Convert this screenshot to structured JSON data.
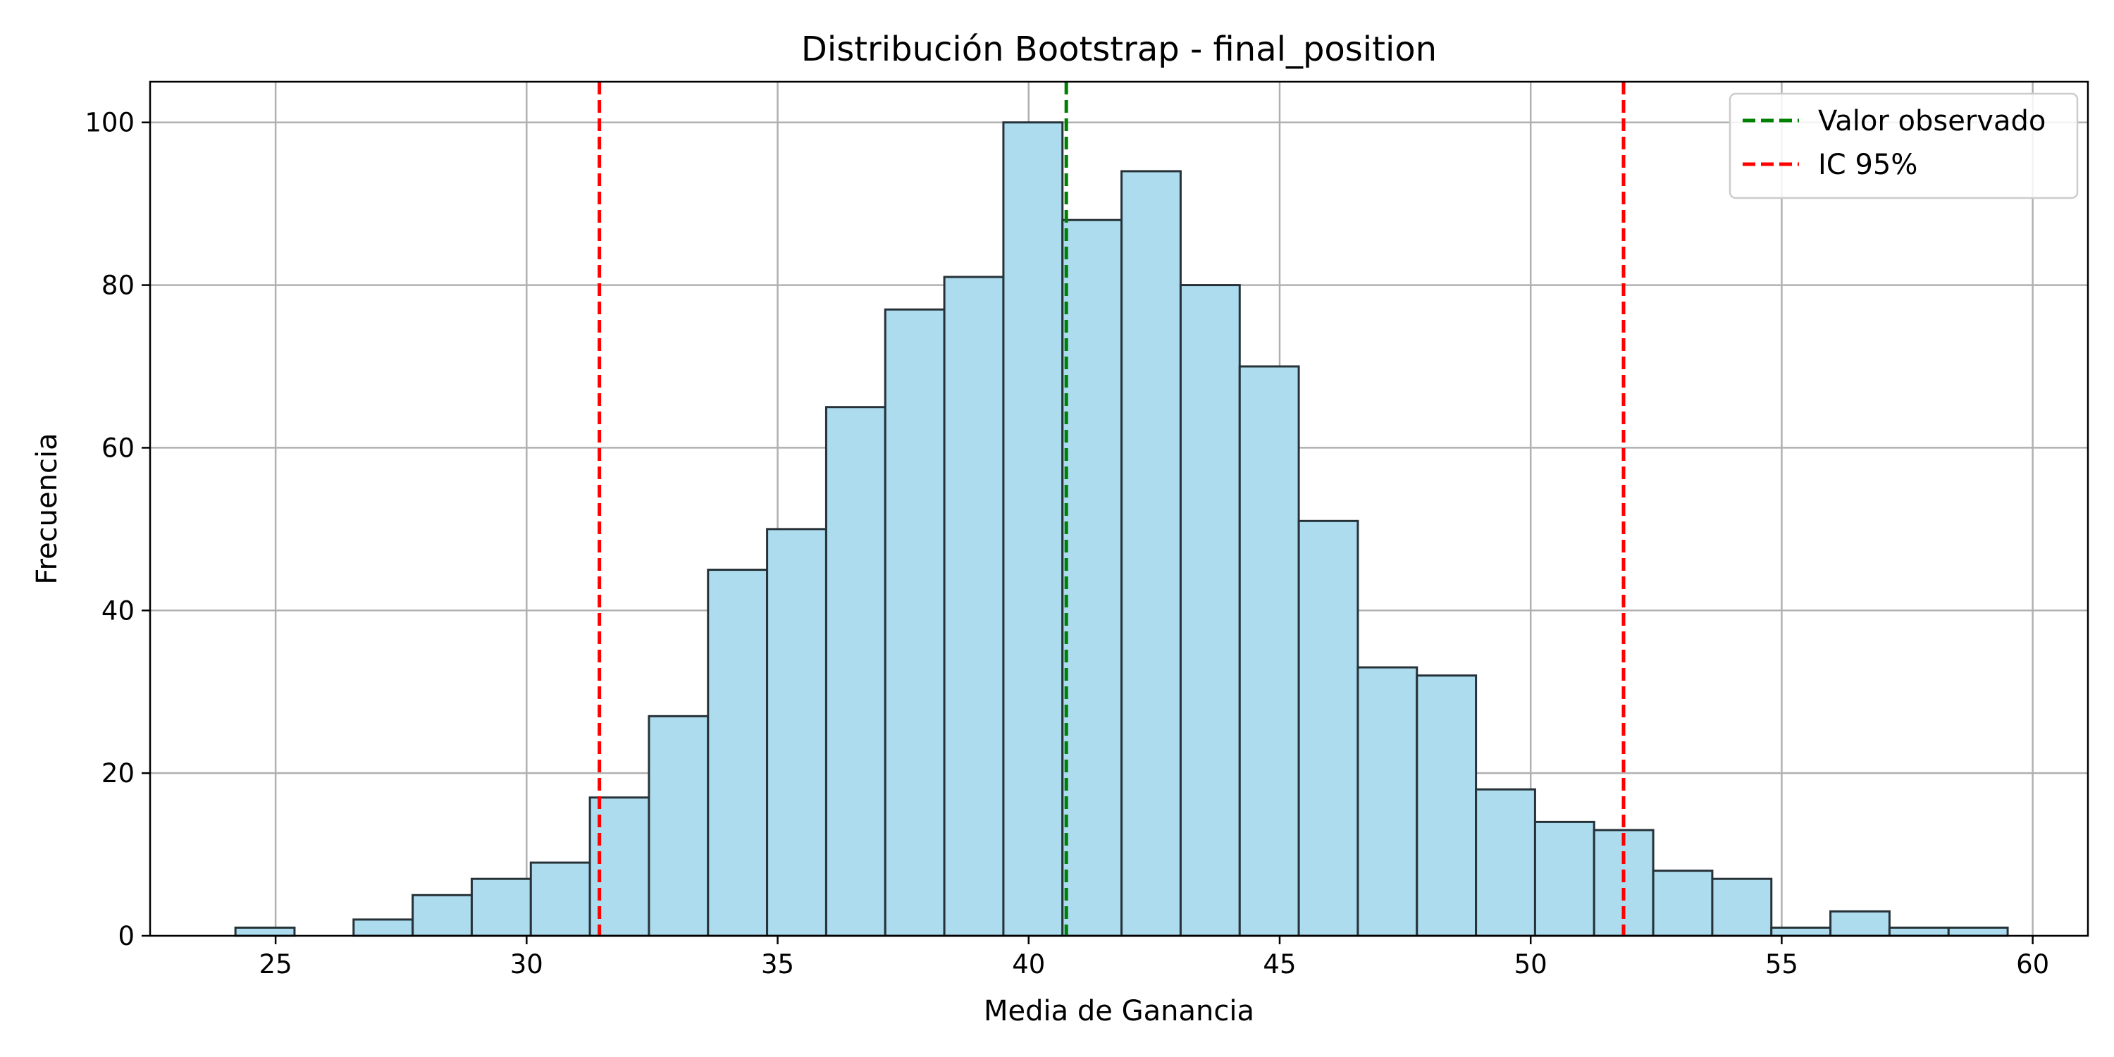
{
  "chart_data": {
    "type": "bar",
    "subtype": "histogram",
    "title": "Distribución Bootstrap - final_position",
    "xlabel": "Media de Ganancia",
    "ylabel": "Frecuencia",
    "xlim": [
      22.5,
      61.1
    ],
    "ylim": [
      0,
      105
    ],
    "xticks": [
      25,
      30,
      35,
      40,
      45,
      50,
      55,
      60
    ],
    "yticks": [
      0,
      20,
      40,
      60,
      80,
      100
    ],
    "grid": true,
    "legend_position": "top-right",
    "bin_start": 24.2,
    "bin_width": 1.1767,
    "counts": [
      1,
      0,
      2,
      5,
      7,
      9,
      17,
      27,
      45,
      50,
      65,
      77,
      81,
      100,
      88,
      94,
      80,
      70,
      51,
      33,
      32,
      18,
      14,
      13,
      8,
      7,
      1,
      3,
      1,
      1
    ],
    "bar_color": "#ADDCEF",
    "bar_edge_color": "#263238",
    "reference_lines": [
      {
        "name": "Valor observado",
        "x": 40.75,
        "color": "#008000",
        "style": "dashed",
        "in_legend": true
      },
      {
        "name": "IC 95%",
        "x": 31.45,
        "color": "#FF0000",
        "style": "dashed",
        "in_legend": true
      },
      {
        "name": "IC 95%",
        "x": 51.85,
        "color": "#FF0000",
        "style": "dashed",
        "in_legend": false
      }
    ]
  }
}
